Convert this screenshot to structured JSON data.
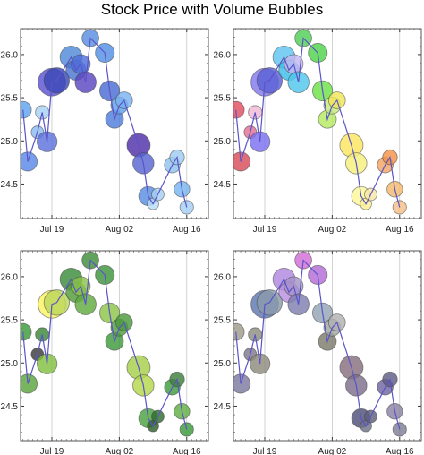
{
  "title": "Stock Price with Volume Bubbles",
  "chart_data": {
    "type": "scatter",
    "subtype": "bubble",
    "layout": "2x2 grid of identical series, different color schemes",
    "x_ticks": [
      "Jul 19",
      "Aug 02",
      "Aug 16"
    ],
    "x_tick_days": [
      19,
      33,
      47
    ],
    "x_range_days": [
      12.5,
      51.5
    ],
    "y_ticks": [
      "24.5",
      "25.0",
      "25.5",
      "26.0"
    ],
    "y_tick_values": [
      24.5,
      25.0,
      25.5,
      26.0
    ],
    "ylim": [
      24.1,
      26.3
    ],
    "x_grid": true,
    "y_grid": false,
    "line_color": "#5b54c8",
    "points": [
      {
        "day": 13,
        "price": 25.36,
        "volume": 0.45
      },
      {
        "day": 14,
        "price": 24.76,
        "volume": 0.55
      },
      {
        "day": 16,
        "price": 25.1,
        "volume": 0.25
      },
      {
        "day": 17,
        "price": 25.33,
        "volume": 0.3
      },
      {
        "day": 18,
        "price": 24.99,
        "volume": 0.6
      },
      {
        "day": 19,
        "price": 25.68,
        "volume": 0.95
      },
      {
        "day": 20,
        "price": 25.7,
        "volume": 0.85
      },
      {
        "day": 23,
        "price": 25.97,
        "volume": 0.7
      },
      {
        "day": 24,
        "price": 25.82,
        "volume": 0.6
      },
      {
        "day": 25,
        "price": 25.89,
        "volume": 0.55
      },
      {
        "day": 26,
        "price": 25.68,
        "volume": 0.65
      },
      {
        "day": 27,
        "price": 26.19,
        "volume": 0.45
      },
      {
        "day": 30,
        "price": 26.02,
        "volume": 0.55
      },
      {
        "day": 31,
        "price": 25.58,
        "volume": 0.6
      },
      {
        "day": 32,
        "price": 25.25,
        "volume": 0.5
      },
      {
        "day": 33,
        "price": 25.41,
        "volume": 0.45
      },
      {
        "day": 34,
        "price": 25.47,
        "volume": 0.45
      },
      {
        "day": 37,
        "price": 24.95,
        "volume": 0.75
      },
      {
        "day": 38,
        "price": 24.74,
        "volume": 0.65
      },
      {
        "day": 39,
        "price": 24.36,
        "volume": 0.55
      },
      {
        "day": 40,
        "price": 24.27,
        "volume": 0.2
      },
      {
        "day": 41,
        "price": 24.38,
        "volume": 0.25
      },
      {
        "day": 44,
        "price": 24.72,
        "volume": 0.4
      },
      {
        "day": 45,
        "price": 24.81,
        "volume": 0.35
      },
      {
        "day": 46,
        "price": 24.44,
        "volume": 0.4
      },
      {
        "day": 47,
        "price": 24.23,
        "volume": 0.3
      }
    ],
    "panels": [
      {
        "id": "top-left",
        "scheme": "blue-shades",
        "colors": [
          "#5ea3ee",
          "#5a87e6",
          "#8bbcef",
          "#a7d2f5",
          "#5d72dd",
          "#5a53d2",
          "#3c49b5",
          "#4f8ad8",
          "#4b74d2",
          "#4f6fdb",
          "#5a47c0",
          "#5a8ee0",
          "#5490e4",
          "#4a6dd3",
          "#4f7ddc",
          "#60a1ef",
          "#7ab2ef",
          "#4f30a8",
          "#5867d2",
          "#5a8ee0",
          "#b7dcf6",
          "#a6cff3",
          "#8fc3ef",
          "#9ecbf2",
          "#78b4ef",
          "#a5d0f4"
        ]
      },
      {
        "id": "top-right",
        "scheme": "rainbow",
        "colors": [
          "#e24f5e",
          "#d84d5a",
          "#e27295",
          "#f0b9d6",
          "#7a6ff0",
          "#8379ee",
          "#5c61d6",
          "#5fc4ef",
          "#3ebde9",
          "#c4b8f1",
          "#4fc6ed",
          "#4fcf57",
          "#4fd34a",
          "#6ee047",
          "#b4ea61",
          "#c6ea7a",
          "#f1e55a",
          "#fbe560",
          "#f6f07a",
          "#fbf69a",
          "#fcf095",
          "#f7e7a5",
          "#f2a565",
          "#f39247",
          "#f4b96c",
          "#f6c089"
        ]
      },
      {
        "id": "bottom-left",
        "scheme": "green-shades",
        "colors": [
          "#3c9a3c",
          "#5ca33d",
          "#3a3a3a",
          "#3b883b",
          "#81c141",
          "#fbf462",
          "#b9d75b",
          "#3b8b3b",
          "#529c3c",
          "#8bc34a",
          "#61ab40",
          "#3d8e3b",
          "#3e943c",
          "#8cc548",
          "#3f9a3d",
          "#519d3d",
          "#4b9a3d",
          "#a6cf4b",
          "#b4d74b",
          "#4aa23f",
          "#2e5e2e",
          "#2f6d2f",
          "#409c3d",
          "#3f7f3d",
          "#5fae43",
          "#3c983c"
        ]
      },
      {
        "id": "bottom-right",
        "scheme": "muted",
        "colors": [
          "#9d9b8a",
          "#7c79a0",
          "#7e798f",
          "#8e8d80",
          "#8d8b7d",
          "#5f78b1",
          "#8b9aa9",
          "#b187e0",
          "#b98ee0",
          "#a592c8",
          "#7e7eb0",
          "#d26ed6",
          "#b36bd6",
          "#94a3b3",
          "#7d7b6b",
          "#9fa79c",
          "#b2b1b2",
          "#876f7e",
          "#7d6f8c",
          "#4f5176",
          "#6f7289",
          "#5e5f7b",
          "#7068a0",
          "#5f5d84",
          "#8b82a4",
          "#7e7f95"
        ]
      }
    ]
  }
}
